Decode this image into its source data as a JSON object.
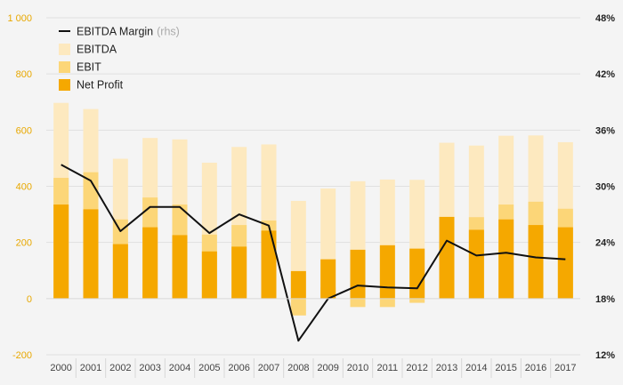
{
  "chart_data": {
    "type": "bar",
    "subtype": "overlapping bars with line on secondary axis",
    "title": "",
    "xlabel": "",
    "ylabel": "",
    "categories": [
      "2000",
      "2001",
      "2002",
      "2003",
      "2004",
      "2005",
      "2006",
      "2007",
      "2008",
      "2009",
      "2010",
      "2011",
      "2012",
      "2013",
      "2014",
      "2015",
      "2016",
      "2017"
    ],
    "series": [
      {
        "name": "EBITDA",
        "axis": "left",
        "color": "#fde9bf",
        "values": [
          697,
          675,
          498,
          572,
          567,
          484,
          540,
          549,
          348,
          392,
          418,
          424,
          423,
          555,
          545,
          580,
          581,
          557
        ]
      },
      {
        "name": "EBIT",
        "axis": "left",
        "color": "#fcd678",
        "values": [
          430,
          450,
          282,
          360,
          335,
          228,
          262,
          278,
          -60,
          40,
          -30,
          -30,
          -15,
          285,
          290,
          335,
          345,
          320
        ]
      },
      {
        "name": "Net Profit",
        "axis": "left",
        "color": "#f5a800",
        "values": [
          335,
          318,
          194,
          254,
          226,
          168,
          185,
          242,
          98,
          140,
          174,
          190,
          178,
          291,
          245,
          282,
          262,
          254
        ]
      },
      {
        "name": "EBITDA Margin",
        "name_suffix": "(rhs)",
        "axis": "right",
        "type": "line",
        "color": "#111111",
        "values": [
          32.3,
          30.6,
          25.2,
          27.8,
          27.8,
          25.0,
          27.0,
          25.8,
          13.5,
          18.0,
          19.4,
          19.2,
          19.1,
          24.2,
          22.6,
          22.9,
          22.4,
          22.2
        ]
      }
    ],
    "left_axis": {
      "ylim": [
        -200,
        1000
      ],
      "ticks": [
        -200,
        0,
        200,
        400,
        600,
        800,
        1000
      ],
      "tick_labels": [
        "-200",
        "0",
        "200",
        "400",
        "600",
        "800",
        "1 000"
      ],
      "color": "#e8a800"
    },
    "right_axis": {
      "ylim": [
        12,
        48
      ],
      "ticks": [
        12,
        18,
        24,
        30,
        36,
        42,
        48
      ],
      "tick_labels": [
        "12%",
        "18%",
        "24%",
        "30%",
        "36%",
        "42%",
        "48%"
      ]
    },
    "grid": true,
    "legend_position": "top-left",
    "legend_order": [
      "EBITDA Margin",
      "EBITDA",
      "EBIT",
      "Net Profit"
    ]
  }
}
